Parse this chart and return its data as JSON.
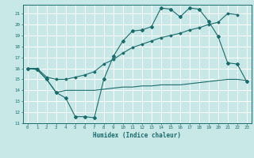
{
  "xlabel": "Humidex (Indice chaleur)",
  "bg_color": "#c8e8e8",
  "line_color": "#1a6b6b",
  "grid_color": "#ffffff",
  "xlim": [
    -0.5,
    23.5
  ],
  "ylim": [
    11,
    21.8
  ],
  "yticks": [
    11,
    12,
    13,
    14,
    15,
    16,
    17,
    18,
    19,
    20,
    21
  ],
  "xticks": [
    0,
    1,
    2,
    3,
    4,
    5,
    6,
    7,
    8,
    9,
    10,
    11,
    12,
    13,
    14,
    15,
    16,
    17,
    18,
    19,
    20,
    21,
    22,
    23
  ],
  "line1_x": [
    0,
    1,
    2,
    3,
    4,
    5,
    6,
    7,
    8,
    9,
    10,
    11,
    12,
    13,
    14,
    15,
    16,
    17,
    18,
    19,
    20,
    21,
    22,
    23
  ],
  "line1_y": [
    16.0,
    15.9,
    15.0,
    13.8,
    13.3,
    11.6,
    11.6,
    11.5,
    15.0,
    17.1,
    18.5,
    19.4,
    19.5,
    19.8,
    21.5,
    21.4,
    20.7,
    21.5,
    21.4,
    20.3,
    18.9,
    16.5,
    16.4,
    14.8
  ],
  "line2_x": [
    0,
    1,
    2,
    3,
    4,
    5,
    6,
    7,
    8,
    9,
    10,
    11,
    12,
    13,
    14,
    15,
    16,
    17,
    18,
    19,
    20,
    21,
    22
  ],
  "line2_y": [
    16.0,
    16.0,
    15.2,
    15.0,
    15.0,
    15.2,
    15.4,
    15.7,
    16.4,
    16.8,
    17.4,
    17.9,
    18.2,
    18.5,
    18.8,
    19.0,
    19.2,
    19.5,
    19.7,
    20.0,
    20.2,
    21.0,
    20.9
  ],
  "line3_x": [
    0,
    1,
    2,
    3,
    4,
    5,
    6,
    7,
    8,
    9,
    10,
    11,
    12,
    13,
    14,
    15,
    16,
    17,
    18,
    19,
    20,
    21,
    22,
    23
  ],
  "line3_y": [
    16.0,
    15.9,
    15.0,
    13.8,
    14.0,
    14.0,
    14.0,
    14.0,
    14.1,
    14.2,
    14.3,
    14.3,
    14.4,
    14.4,
    14.5,
    14.5,
    14.5,
    14.6,
    14.7,
    14.8,
    14.9,
    15.0,
    15.0,
    14.9
  ]
}
